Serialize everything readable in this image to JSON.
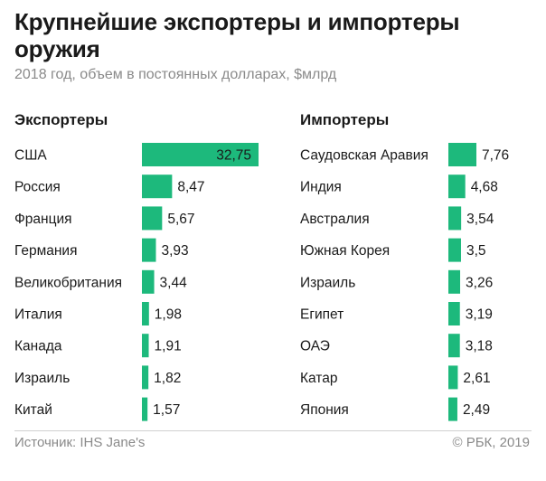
{
  "title": "Крупнейшие экспортеры и импортеры оружия",
  "subtitle": "2018 год, объем в постоянных долларах, $млрд",
  "bar_color": "#1db97c",
  "source": "Источник: IHS Jane's",
  "copyright": "© РБК, 2019",
  "chart_data": [
    {
      "type": "bar",
      "orientation": "horizontal",
      "title": "Экспортеры",
      "categories": [
        "США",
        "Россия",
        "Франция",
        "Германия",
        "Великобритания",
        "Италия",
        "Канада",
        "Израиль",
        "Китай"
      ],
      "values": [
        32.75,
        8.47,
        5.67,
        3.93,
        3.44,
        1.98,
        1.91,
        1.82,
        1.57
      ],
      "value_labels": [
        "32,75",
        "8,47",
        "5,67",
        "3,93",
        "3,44",
        "1,98",
        "1,91",
        "1,82",
        "1,57"
      ]
    },
    {
      "type": "bar",
      "orientation": "horizontal",
      "title": "Импортеры",
      "categories": [
        "Саудовская Аравия",
        "Индия",
        "Австралия",
        "Южная Корея",
        "Израиль",
        "Египет",
        "ОАЭ",
        "Катар",
        "Япония"
      ],
      "values": [
        7.76,
        4.68,
        3.54,
        3.5,
        3.26,
        3.19,
        3.18,
        2.61,
        2.49
      ],
      "value_labels": [
        "7,76",
        "4,68",
        "3,54",
        "3,5",
        "3,26",
        "3,19",
        "3,18",
        "2,61",
        "2,49"
      ]
    }
  ]
}
